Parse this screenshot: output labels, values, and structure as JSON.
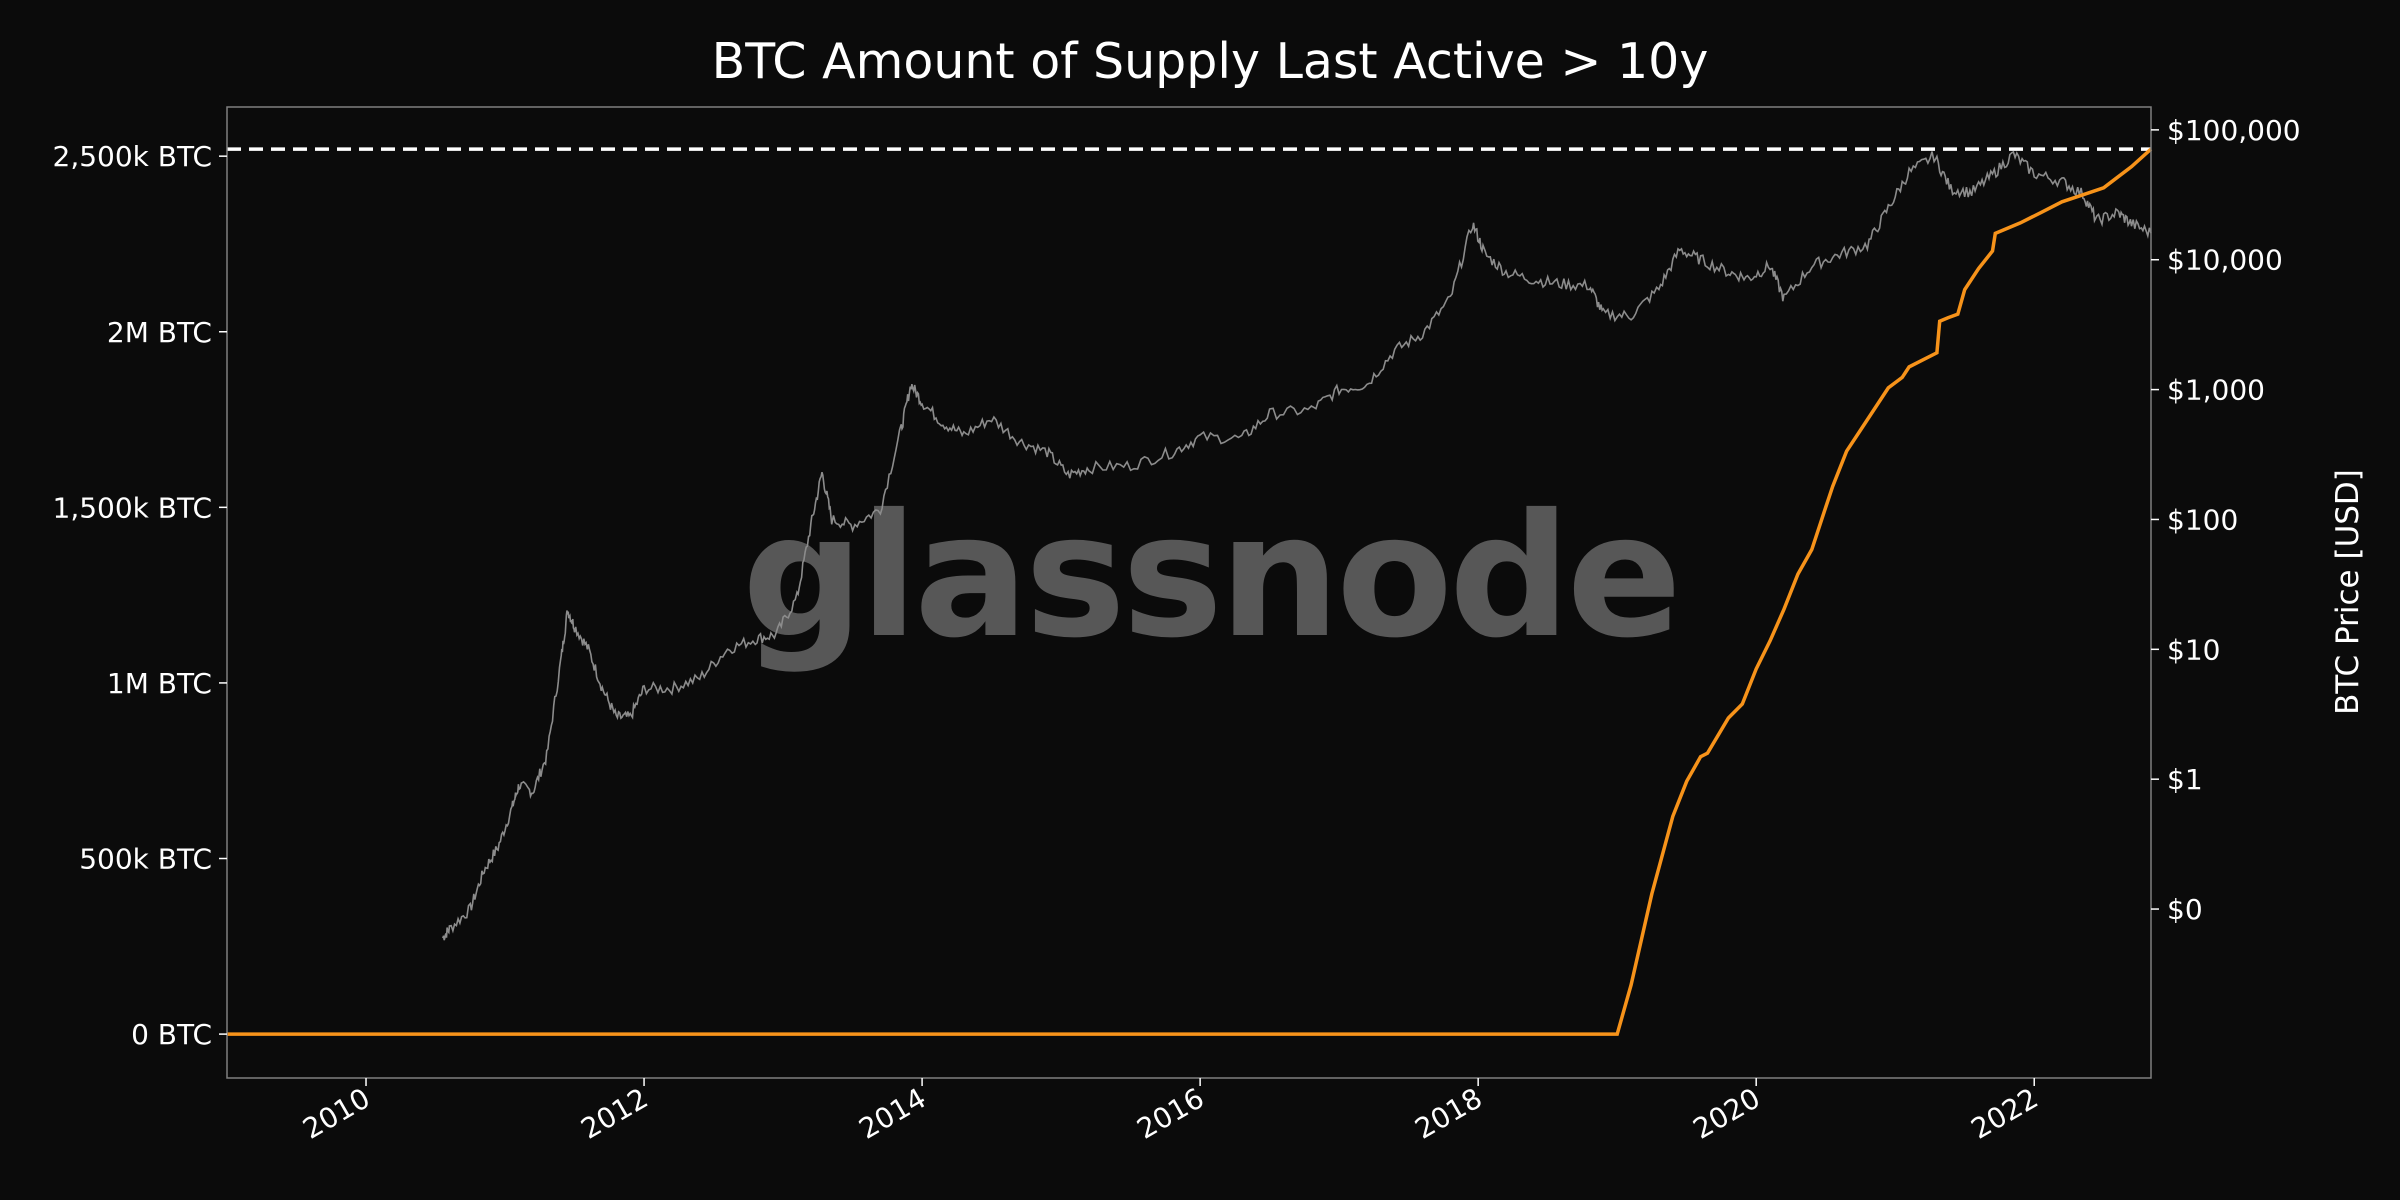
{
  "chart_data": {
    "type": "line",
    "title": "BTC Amount of Supply Last Active > 10y",
    "watermark": "glassnode",
    "xlabel": "",
    "ylabel_left": "",
    "ylabel_right": "BTC Price [USD]",
    "x_range": [
      2009.0,
      2022.84
    ],
    "x_ticks": [
      {
        "value": 2010,
        "label": "2010"
      },
      {
        "value": 2012,
        "label": "2012"
      },
      {
        "value": 2014,
        "label": "2014"
      },
      {
        "value": 2016,
        "label": "2016"
      },
      {
        "value": 2018,
        "label": "2018"
      },
      {
        "value": 2020,
        "label": "2020"
      },
      {
        "value": 2022,
        "label": "2022"
      }
    ],
    "y_left": {
      "unit": "BTC",
      "range": [
        -125000,
        2640000
      ],
      "ticks": [
        {
          "value": 0,
          "label": "0 BTC"
        },
        {
          "value": 500000,
          "label": "500k BTC"
        },
        {
          "value": 1000000,
          "label": "1M BTC"
        },
        {
          "value": 1500000,
          "label": "1,500k BTC"
        },
        {
          "value": 2000000,
          "label": "2M BTC"
        },
        {
          "value": 2500000,
          "label": "2,500k BTC"
        }
      ]
    },
    "y_right": {
      "scale": "log",
      "unit": "USD",
      "range": [
        0.005,
        150000
      ],
      "ticks": [
        {
          "value": 0.1,
          "label": "$0"
        },
        {
          "value": 1,
          "label": "$1"
        },
        {
          "value": 10,
          "label": "$10"
        },
        {
          "value": 100,
          "label": "$100"
        },
        {
          "value": 1000,
          "label": "$1,000"
        },
        {
          "value": 10000,
          "label": "$10,000"
        },
        {
          "value": 100000,
          "label": "$100,000"
        }
      ]
    },
    "reference_line": {
      "axis": "left",
      "value": 2520000,
      "style": "dashed",
      "color": "#ffffff"
    },
    "grid": false,
    "series": [
      {
        "axis": "left",
        "color": "#f7931a",
        "points": [
          [
            2009.0,
            0
          ],
          [
            2019.0,
            0
          ],
          [
            2019.1,
            140000
          ],
          [
            2019.25,
            400000
          ],
          [
            2019.4,
            620000
          ],
          [
            2019.5,
            720000
          ],
          [
            2019.6,
            790000
          ],
          [
            2019.65,
            800000
          ],
          [
            2019.8,
            900000
          ],
          [
            2019.9,
            940000
          ],
          [
            2020.0,
            1040000
          ],
          [
            2020.1,
            1120000
          ],
          [
            2020.2,
            1210000
          ],
          [
            2020.3,
            1310000
          ],
          [
            2020.4,
            1380000
          ],
          [
            2020.5,
            1500000
          ],
          [
            2020.55,
            1560000
          ],
          [
            2020.65,
            1660000
          ],
          [
            2020.75,
            1720000
          ],
          [
            2020.85,
            1780000
          ],
          [
            2020.95,
            1840000
          ],
          [
            2021.05,
            1870000
          ],
          [
            2021.1,
            1900000
          ],
          [
            2021.2,
            1920000
          ],
          [
            2021.3,
            1940000
          ],
          [
            2021.32,
            2030000
          ],
          [
            2021.38,
            2040000
          ],
          [
            2021.45,
            2050000
          ],
          [
            2021.5,
            2120000
          ],
          [
            2021.6,
            2180000
          ],
          [
            2021.7,
            2230000
          ],
          [
            2021.72,
            2280000
          ],
          [
            2021.9,
            2310000
          ],
          [
            2022.05,
            2340000
          ],
          [
            2022.2,
            2370000
          ],
          [
            2022.35,
            2390000
          ],
          [
            2022.5,
            2410000
          ],
          [
            2022.6,
            2440000
          ],
          [
            2022.7,
            2470000
          ],
          [
            2022.84,
            2520000
          ]
        ]
      },
      {
        "axis": "right",
        "color": "#8c8c8c",
        "points": [
          [
            2010.55,
            0.06
          ],
          [
            2010.6,
            0.07
          ],
          [
            2010.75,
            0.1
          ],
          [
            2010.85,
            0.2
          ],
          [
            2010.95,
            0.3
          ],
          [
            2011.05,
            0.6
          ],
          [
            2011.1,
            0.9
          ],
          [
            2011.2,
            0.8
          ],
          [
            2011.3,
            1.5
          ],
          [
            2011.4,
            8
          ],
          [
            2011.45,
            20
          ],
          [
            2011.5,
            15
          ],
          [
            2011.6,
            10
          ],
          [
            2011.7,
            5
          ],
          [
            2011.8,
            3
          ],
          [
            2011.9,
            3
          ],
          [
            2012.0,
            5
          ],
          [
            2012.2,
            5
          ],
          [
            2012.4,
            6
          ],
          [
            2012.6,
            10
          ],
          [
            2012.8,
            12
          ],
          [
            2012.95,
            13
          ],
          [
            2013.1,
            25
          ],
          [
            2013.2,
            90
          ],
          [
            2013.28,
            230
          ],
          [
            2013.35,
            100
          ],
          [
            2013.5,
            90
          ],
          [
            2013.7,
            120
          ],
          [
            2013.85,
            500
          ],
          [
            2013.92,
            1100
          ],
          [
            2014.0,
            800
          ],
          [
            2014.15,
            550
          ],
          [
            2014.3,
            450
          ],
          [
            2014.5,
            600
          ],
          [
            2014.7,
            400
          ],
          [
            2014.9,
            330
          ],
          [
            2015.05,
            220
          ],
          [
            2015.2,
            250
          ],
          [
            2015.5,
            260
          ],
          [
            2015.8,
            330
          ],
          [
            2016.0,
            430
          ],
          [
            2016.3,
            420
          ],
          [
            2016.5,
            650
          ],
          [
            2016.8,
            700
          ],
          [
            2017.0,
            1000
          ],
          [
            2017.2,
            1100
          ],
          [
            2017.4,
            2000
          ],
          [
            2017.6,
            2700
          ],
          [
            2017.8,
            5000
          ],
          [
            2017.96,
            19000
          ],
          [
            2018.05,
            11000
          ],
          [
            2018.2,
            8000
          ],
          [
            2018.4,
            7000
          ],
          [
            2018.6,
            6500
          ],
          [
            2018.8,
            6300
          ],
          [
            2018.9,
            3800
          ],
          [
            2019.1,
            3700
          ],
          [
            2019.3,
            6000
          ],
          [
            2019.45,
            12000
          ],
          [
            2019.6,
            10000
          ],
          [
            2019.8,
            8000
          ],
          [
            2019.95,
            7200
          ],
          [
            2020.1,
            9000
          ],
          [
            2020.2,
            5000
          ],
          [
            2020.4,
            9000
          ],
          [
            2020.6,
            11000
          ],
          [
            2020.8,
            13000
          ],
          [
            2020.95,
            25000
          ],
          [
            2021.1,
            47000
          ],
          [
            2021.28,
            63000
          ],
          [
            2021.4,
            35000
          ],
          [
            2021.55,
            33000
          ],
          [
            2021.7,
            45000
          ],
          [
            2021.85,
            65000
          ],
          [
            2022.0,
            46000
          ],
          [
            2022.2,
            40000
          ],
          [
            2022.35,
            32000
          ],
          [
            2022.45,
            20000
          ],
          [
            2022.6,
            23000
          ],
          [
            2022.7,
            19000
          ],
          [
            2022.84,
            16000
          ]
        ]
      }
    ]
  }
}
